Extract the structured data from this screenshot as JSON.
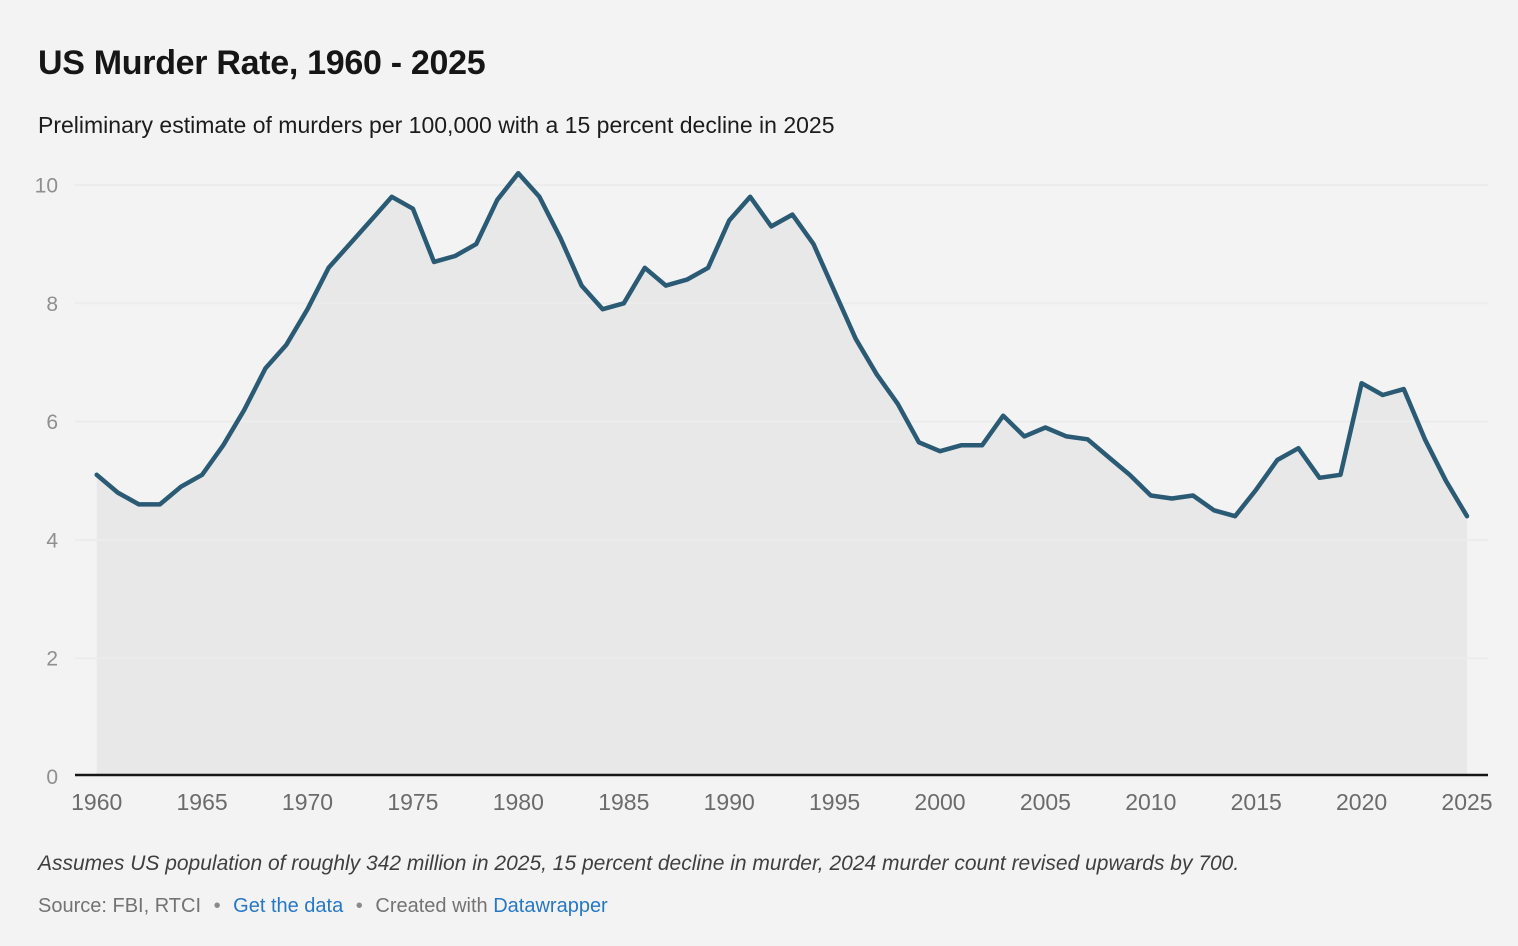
{
  "chart_data": {
    "type": "area",
    "title": "US Murder Rate, 1960 - 2025",
    "subtitle": "Preliminary estimate of murders per 100,000 with a 15 percent decline in 2025",
    "xlabel": "",
    "ylabel": "",
    "ylim": [
      0,
      10.2
    ],
    "yticks": [
      0,
      2,
      4,
      6,
      8,
      10
    ],
    "xticks": [
      1960,
      1965,
      1970,
      1975,
      1980,
      1985,
      1990,
      1995,
      2000,
      2005,
      2010,
      2015,
      2020,
      2025
    ],
    "grid": "horizontal",
    "legend": "none",
    "line_color": "#2a5a74",
    "area_color": "#e8e8e8",
    "gridline_color": "#ececec",
    "baseline_color": "#161616",
    "x": [
      1960,
      1961,
      1962,
      1963,
      1964,
      1965,
      1966,
      1967,
      1968,
      1969,
      1970,
      1971,
      1972,
      1973,
      1974,
      1975,
      1976,
      1977,
      1978,
      1979,
      1980,
      1981,
      1982,
      1983,
      1984,
      1985,
      1986,
      1987,
      1988,
      1989,
      1990,
      1991,
      1992,
      1993,
      1994,
      1995,
      1996,
      1997,
      1998,
      1999,
      2000,
      2001,
      2002,
      2003,
      2004,
      2005,
      2006,
      2007,
      2008,
      2009,
      2010,
      2011,
      2012,
      2013,
      2014,
      2015,
      2016,
      2017,
      2018,
      2019,
      2020,
      2021,
      2022,
      2023,
      2024,
      2025
    ],
    "values": [
      5.1,
      4.8,
      4.6,
      4.6,
      4.9,
      5.1,
      5.6,
      6.2,
      6.9,
      7.3,
      7.9,
      8.6,
      9.0,
      9.4,
      9.8,
      9.6,
      8.7,
      8.8,
      9.0,
      9.75,
      10.2,
      9.8,
      9.1,
      8.3,
      7.9,
      8.0,
      8.6,
      8.3,
      8.4,
      8.6,
      9.4,
      9.8,
      9.3,
      9.5,
      9.0,
      8.2,
      7.4,
      6.8,
      6.3,
      5.65,
      5.5,
      5.6,
      5.6,
      6.1,
      5.75,
      5.9,
      5.75,
      5.7,
      5.4,
      5.1,
      4.75,
      4.7,
      4.75,
      4.5,
      4.4,
      4.85,
      5.35,
      5.55,
      5.05,
      5.1,
      6.65,
      6.45,
      6.55,
      5.7,
      5.0,
      4.4
    ]
  },
  "footer": {
    "note": "Assumes US population of roughly 342 million in 2025, 15 percent decline in murder, 2024 murder count revised upwards by 700.",
    "source_prefix": "Source: FBI, RTCI",
    "separator": "•",
    "link_get_data": "Get the data",
    "created_with": "Created with",
    "link_datawrapper": "Datawrapper"
  }
}
